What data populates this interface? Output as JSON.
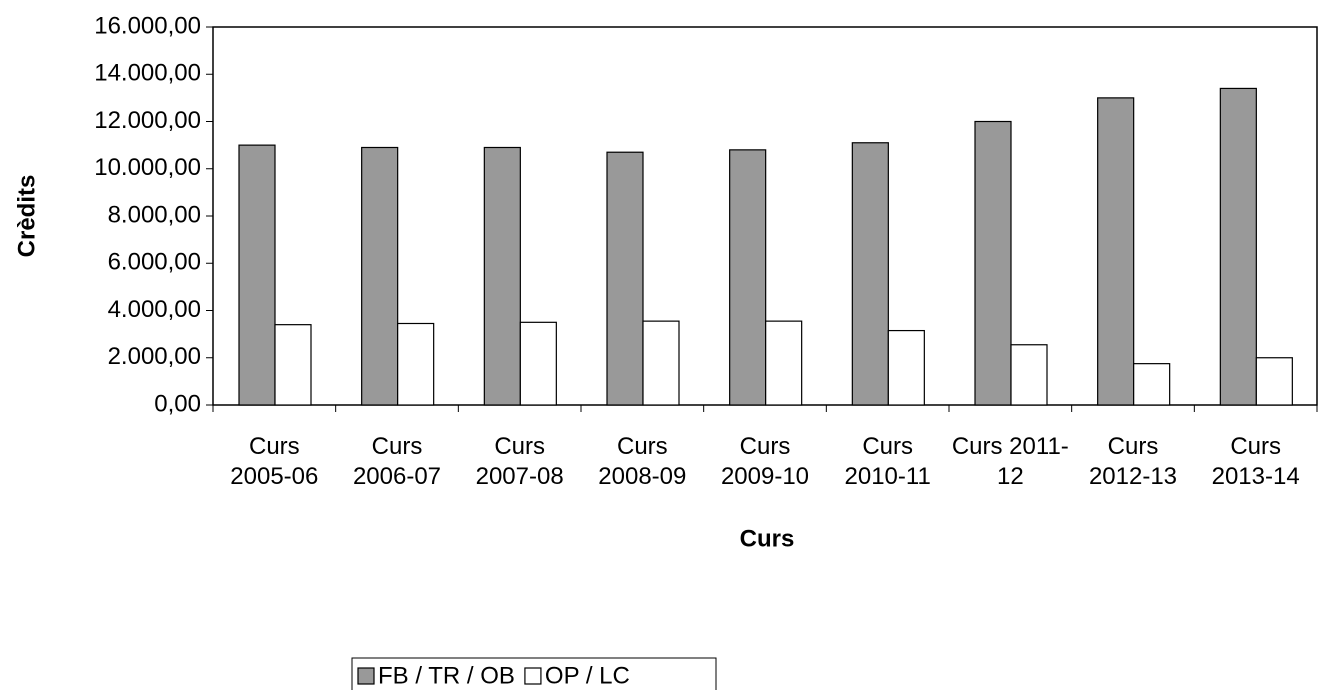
{
  "chart_data": {
    "type": "bar",
    "y_label": "Crèdits",
    "x_label": "Curs",
    "categories": [
      "Curs 2005-06",
      "Curs 2006-07",
      "Curs 2007-08",
      "Curs 2008-09",
      "Curs 2009-10",
      "Curs 2010-11",
      "Curs 2011-12",
      "Curs 2012-13",
      "Curs 2013-14"
    ],
    "series": [
      {
        "name": "FB / TR / OB",
        "color": "#999999",
        "values": [
          11000,
          10900,
          10900,
          10700,
          10800,
          11100,
          12000,
          13000,
          13400
        ]
      },
      {
        "name": "OP / LC",
        "color": "#ffffff",
        "values": [
          3400,
          3450,
          3500,
          3550,
          3550,
          3150,
          2550,
          1750,
          2000
        ]
      }
    ],
    "ylim": [
      0,
      16000
    ],
    "yticks": [
      {
        "value": 0,
        "label": "0,00"
      },
      {
        "value": 2000,
        "label": "2.000,00"
      },
      {
        "value": 4000,
        "label": "4.000,00"
      },
      {
        "value": 6000,
        "label": "6.000,00"
      },
      {
        "value": 8000,
        "label": "8.000,00"
      },
      {
        "value": 10000,
        "label": "10.000,00"
      },
      {
        "value": 12000,
        "label": "12.000,00"
      },
      {
        "value": 14000,
        "label": "14.000,00"
      },
      {
        "value": 16000,
        "label": "16.000,00"
      }
    ],
    "grid": false,
    "legend": "bottom"
  }
}
